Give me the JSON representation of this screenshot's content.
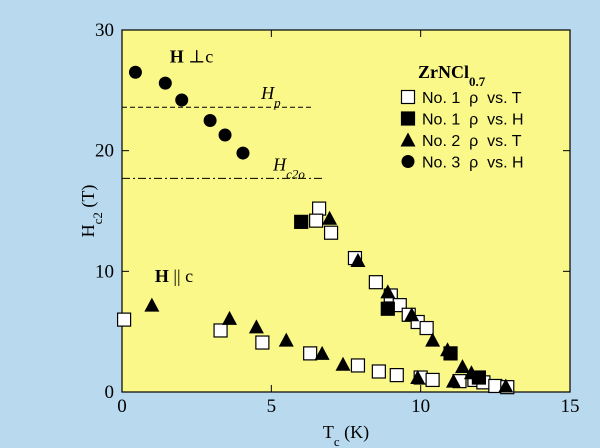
{
  "chart_data": {
    "type": "scatter",
    "xlabel": {
      "main": "T",
      "sub": "c",
      "rest": " (K)"
    },
    "ylabel": {
      "main": "H",
      "sub": "c2",
      "rest": " (T)"
    },
    "xlim": [
      0,
      15
    ],
    "xticks": [
      0,
      5,
      10,
      15
    ],
    "ylim": [
      0,
      30
    ],
    "yticks": [
      0,
      10,
      20,
      30
    ],
    "legend_title": {
      "main": "ZrNCl",
      "sub": "0.7"
    },
    "annotations": [
      {
        "text": "H",
        "rest": " ⊥c",
        "x": 1.6,
        "y": 27.3
      },
      {
        "text": "H",
        "rest": " || c",
        "x": 1.1,
        "y": 9.1
      }
    ],
    "reference_lines": [
      {
        "label": "H",
        "sub": "p",
        "y": 23.6,
        "x": [
          0,
          6.4
        ],
        "dash": "5,3"
      },
      {
        "label": "H",
        "sub": "c2o",
        "y": 17.7,
        "x": [
          0,
          6.8
        ],
        "dash": "8,3,2,3"
      }
    ],
    "series": [
      {
        "name": "No. 1  ρ  vs. T",
        "marker": "square-open",
        "color": "#000000",
        "x": [
          0.07,
          3.3,
          4.7,
          6.3,
          6.6,
          6.5,
          7.0,
          7.8,
          7.9,
          8.6,
          9.2,
          8.5,
          9.0,
          9.3,
          9.6,
          9.9,
          10.2,
          10.0,
          10.4,
          11.3,
          11.8,
          12.1,
          12.5,
          12.9
        ],
        "values": [
          6.0,
          5.1,
          4.1,
          3.2,
          15.2,
          14.2,
          13.2,
          11.1,
          2.2,
          1.7,
          1.4,
          9.1,
          8.0,
          7.2,
          6.4,
          5.8,
          5.3,
          1.2,
          1.0,
          0.9,
          1.0,
          0.8,
          0.5,
          0.4
        ]
      },
      {
        "name": "No. 1  ρ  vs. H",
        "marker": "square",
        "color": "#000000",
        "x": [
          6.0,
          8.9,
          11.0,
          11.95
        ],
        "values": [
          14.1,
          6.9,
          3.2,
          1.2
        ]
      },
      {
        "name": "No. 2  ρ  vs. T",
        "marker": "triangle",
        "color": "#000000",
        "x": [
          1.0,
          3.6,
          4.5,
          5.5,
          6.7,
          6.95,
          7.9,
          7.4,
          8.9,
          9.7,
          10.4,
          10.9,
          9.9,
          11.1,
          11.4,
          11.7,
          12.85
        ],
        "values": [
          7.2,
          6.1,
          5.4,
          4.3,
          3.2,
          14.4,
          10.9,
          2.3,
          8.3,
          6.4,
          4.3,
          3.5,
          1.2,
          0.9,
          2.1,
          1.6,
          0.5
        ]
      },
      {
        "name": "No. 3  ρ  vs. H",
        "marker": "circle",
        "color": "#000000",
        "x": [
          0.45,
          1.45,
          2.0,
          2.95,
          3.45,
          4.05
        ],
        "values": [
          26.5,
          25.6,
          24.2,
          22.5,
          21.3,
          19.8
        ]
      }
    ]
  }
}
